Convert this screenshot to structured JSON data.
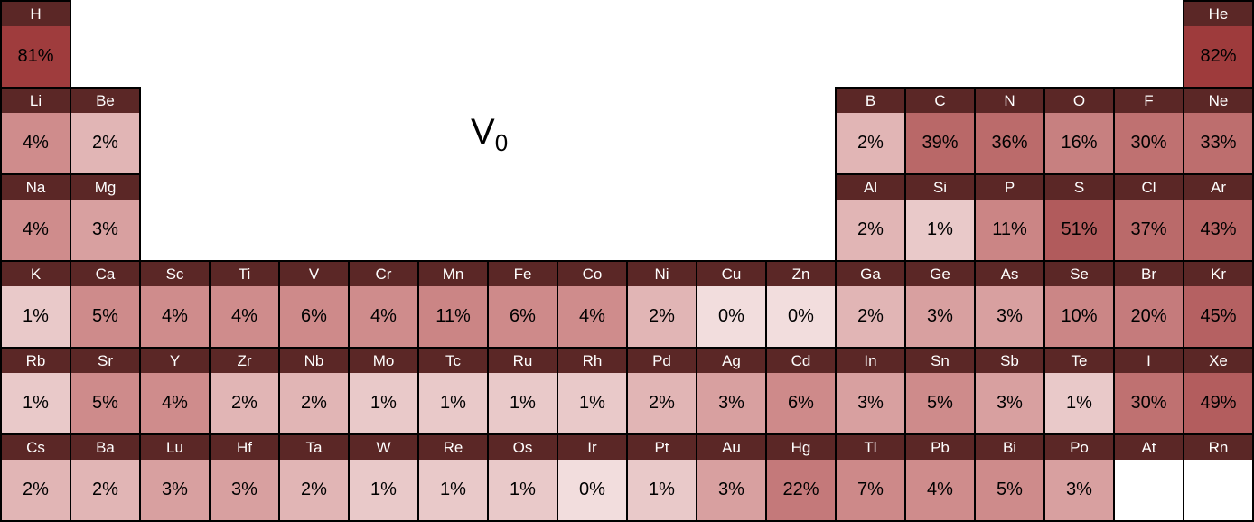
{
  "chart_data": {
    "type": "heatmap",
    "layout": "periodic-table",
    "title_base": "V",
    "title_sub": "0",
    "value_suffix": "%",
    "rows": 6,
    "columns": 18,
    "colors": {
      "header_bg": "#5b2726",
      "header_text": "#ffffff",
      "cell_border": "#000000",
      "value_text": "#000000",
      "empty_cell_bg": "#ffffff"
    },
    "color_scale": {
      "stops": [
        {
          "value": 0,
          "color": "#f2dddd"
        },
        {
          "value": 4,
          "color": "#cf8c8c"
        },
        {
          "value": 82,
          "color": "#9e3b3c"
        }
      ]
    },
    "cells": [
      {
        "row": 1,
        "col": 1,
        "symbol": "H",
        "value": 81
      },
      {
        "row": 1,
        "col": 18,
        "symbol": "He",
        "value": 82
      },
      {
        "row": 2,
        "col": 1,
        "symbol": "Li",
        "value": 4
      },
      {
        "row": 2,
        "col": 2,
        "symbol": "Be",
        "value": 2
      },
      {
        "row": 2,
        "col": 13,
        "symbol": "B",
        "value": 2
      },
      {
        "row": 2,
        "col": 14,
        "symbol": "C",
        "value": 39
      },
      {
        "row": 2,
        "col": 15,
        "symbol": "N",
        "value": 36
      },
      {
        "row": 2,
        "col": 16,
        "symbol": "O",
        "value": 16
      },
      {
        "row": 2,
        "col": 17,
        "symbol": "F",
        "value": 30
      },
      {
        "row": 2,
        "col": 18,
        "symbol": "Ne",
        "value": 33
      },
      {
        "row": 3,
        "col": 1,
        "symbol": "Na",
        "value": 4
      },
      {
        "row": 3,
        "col": 2,
        "symbol": "Mg",
        "value": 3
      },
      {
        "row": 3,
        "col": 13,
        "symbol": "Al",
        "value": 2
      },
      {
        "row": 3,
        "col": 14,
        "symbol": "Si",
        "value": 1
      },
      {
        "row": 3,
        "col": 15,
        "symbol": "P",
        "value": 11
      },
      {
        "row": 3,
        "col": 16,
        "symbol": "S",
        "value": 51
      },
      {
        "row": 3,
        "col": 17,
        "symbol": "Cl",
        "value": 37
      },
      {
        "row": 3,
        "col": 18,
        "symbol": "Ar",
        "value": 43
      },
      {
        "row": 4,
        "col": 1,
        "symbol": "K",
        "value": 1
      },
      {
        "row": 4,
        "col": 2,
        "symbol": "Ca",
        "value": 5
      },
      {
        "row": 4,
        "col": 3,
        "symbol": "Sc",
        "value": 4
      },
      {
        "row": 4,
        "col": 4,
        "symbol": "Ti",
        "value": 4
      },
      {
        "row": 4,
        "col": 5,
        "symbol": "V",
        "value": 6
      },
      {
        "row": 4,
        "col": 6,
        "symbol": "Cr",
        "value": 4
      },
      {
        "row": 4,
        "col": 7,
        "symbol": "Mn",
        "value": 11
      },
      {
        "row": 4,
        "col": 8,
        "symbol": "Fe",
        "value": 6
      },
      {
        "row": 4,
        "col": 9,
        "symbol": "Co",
        "value": 4
      },
      {
        "row": 4,
        "col": 10,
        "symbol": "Ni",
        "value": 2
      },
      {
        "row": 4,
        "col": 11,
        "symbol": "Cu",
        "value": 0
      },
      {
        "row": 4,
        "col": 12,
        "symbol": "Zn",
        "value": 0
      },
      {
        "row": 4,
        "col": 13,
        "symbol": "Ga",
        "value": 2
      },
      {
        "row": 4,
        "col": 14,
        "symbol": "Ge",
        "value": 3
      },
      {
        "row": 4,
        "col": 15,
        "symbol": "As",
        "value": 3
      },
      {
        "row": 4,
        "col": 16,
        "symbol": "Se",
        "value": 10
      },
      {
        "row": 4,
        "col": 17,
        "symbol": "Br",
        "value": 20
      },
      {
        "row": 4,
        "col": 18,
        "symbol": "Kr",
        "value": 45
      },
      {
        "row": 5,
        "col": 1,
        "symbol": "Rb",
        "value": 1
      },
      {
        "row": 5,
        "col": 2,
        "symbol": "Sr",
        "value": 5
      },
      {
        "row": 5,
        "col": 3,
        "symbol": "Y",
        "value": 4
      },
      {
        "row": 5,
        "col": 4,
        "symbol": "Zr",
        "value": 2
      },
      {
        "row": 5,
        "col": 5,
        "symbol": "Nb",
        "value": 2
      },
      {
        "row": 5,
        "col": 6,
        "symbol": "Mo",
        "value": 1
      },
      {
        "row": 5,
        "col": 7,
        "symbol": "Tc",
        "value": 1
      },
      {
        "row": 5,
        "col": 8,
        "symbol": "Ru",
        "value": 1
      },
      {
        "row": 5,
        "col": 9,
        "symbol": "Rh",
        "value": 1
      },
      {
        "row": 5,
        "col": 10,
        "symbol": "Pd",
        "value": 2
      },
      {
        "row": 5,
        "col": 11,
        "symbol": "Ag",
        "value": 3
      },
      {
        "row": 5,
        "col": 12,
        "symbol": "Cd",
        "value": 6
      },
      {
        "row": 5,
        "col": 13,
        "symbol": "In",
        "value": 3
      },
      {
        "row": 5,
        "col": 14,
        "symbol": "Sn",
        "value": 5
      },
      {
        "row": 5,
        "col": 15,
        "symbol": "Sb",
        "value": 3
      },
      {
        "row": 5,
        "col": 16,
        "symbol": "Te",
        "value": 1
      },
      {
        "row": 5,
        "col": 17,
        "symbol": "I",
        "value": 30
      },
      {
        "row": 5,
        "col": 18,
        "symbol": "Xe",
        "value": 49
      },
      {
        "row": 6,
        "col": 1,
        "symbol": "Cs",
        "value": 2
      },
      {
        "row": 6,
        "col": 2,
        "symbol": "Ba",
        "value": 2
      },
      {
        "row": 6,
        "col": 3,
        "symbol": "Lu",
        "value": 3
      },
      {
        "row": 6,
        "col": 4,
        "symbol": "Hf",
        "value": 3
      },
      {
        "row": 6,
        "col": 5,
        "symbol": "Ta",
        "value": 2
      },
      {
        "row": 6,
        "col": 6,
        "symbol": "W",
        "value": 1
      },
      {
        "row": 6,
        "col": 7,
        "symbol": "Re",
        "value": 1
      },
      {
        "row": 6,
        "col": 8,
        "symbol": "Os",
        "value": 1
      },
      {
        "row": 6,
        "col": 9,
        "symbol": "Ir",
        "value": 0
      },
      {
        "row": 6,
        "col": 10,
        "symbol": "Pt",
        "value": 1
      },
      {
        "row": 6,
        "col": 11,
        "symbol": "Au",
        "value": 3
      },
      {
        "row": 6,
        "col": 12,
        "symbol": "Hg",
        "value": 22
      },
      {
        "row": 6,
        "col": 13,
        "symbol": "Tl",
        "value": 7
      },
      {
        "row": 6,
        "col": 14,
        "symbol": "Pb",
        "value": 4
      },
      {
        "row": 6,
        "col": 15,
        "symbol": "Bi",
        "value": 5
      },
      {
        "row": 6,
        "col": 16,
        "symbol": "Po",
        "value": 3
      },
      {
        "row": 6,
        "col": 17,
        "symbol": "At",
        "value": null
      },
      {
        "row": 6,
        "col": 18,
        "symbol": "Rn",
        "value": null
      }
    ]
  }
}
